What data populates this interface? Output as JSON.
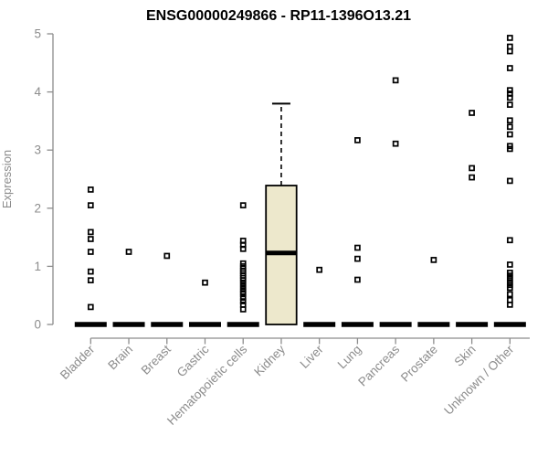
{
  "chart_data": {
    "type": "box",
    "title": "ENSG00000249866 - RP11-1396O13.21",
    "ylabel": "Expression",
    "xlabel": "",
    "ylim": [
      0,
      5
    ],
    "yticks": [
      0,
      1,
      2,
      3,
      4,
      5
    ],
    "grid": false,
    "legend": "none",
    "colors": {
      "box_fill": "#EDE8CC",
      "box_border": "#000000",
      "point_color": "#000000",
      "axis_color": "#8C8C8C",
      "title_color": "#000000",
      "background": "#FFFFFF"
    },
    "categories": [
      "Bladder",
      "Brain",
      "Breast",
      "Gastric",
      "Hematopoietic cells",
      "Kidney",
      "Liver",
      "Lung",
      "Pancreas",
      "Prostate",
      "Skin",
      "Unknown / Other"
    ],
    "series": [
      {
        "category": "Bladder",
        "box": {
          "whisker_low": 0,
          "q1": 0,
          "median": 0,
          "q3": 0,
          "whisker_high": 0
        },
        "points": [
          2.32,
          2.05,
          1.59,
          1.47,
          1.25,
          0.91,
          0.76,
          0.3
        ]
      },
      {
        "category": "Brain",
        "box": {
          "whisker_low": 0,
          "q1": 0,
          "median": 0,
          "q3": 0,
          "whisker_high": 0
        },
        "points": [
          1.25
        ]
      },
      {
        "category": "Breast",
        "box": {
          "whisker_low": 0,
          "q1": 0,
          "median": 0,
          "q3": 0,
          "whisker_high": 0
        },
        "points": [
          1.18
        ]
      },
      {
        "category": "Gastric",
        "box": {
          "whisker_low": 0,
          "q1": 0,
          "median": 0,
          "q3": 0,
          "whisker_high": 0
        },
        "points": [
          0.72
        ]
      },
      {
        "category": "Hematopoietic cells",
        "box": {
          "whisker_low": 0,
          "q1": 0,
          "median": 0,
          "q3": 0,
          "whisker_high": 0
        },
        "points": [
          2.05,
          1.44,
          1.37,
          1.3,
          1.05,
          1.0,
          0.96,
          0.92,
          0.88,
          0.84,
          0.8,
          0.76,
          0.71,
          0.66,
          0.61,
          0.56,
          0.52,
          0.46,
          0.4,
          0.34,
          0.26
        ]
      },
      {
        "category": "Kidney",
        "box": {
          "whisker_low": 0,
          "q1": 0,
          "median": 1.23,
          "q3": 2.39,
          "whisker_high": 3.8
        },
        "points": []
      },
      {
        "category": "Liver",
        "box": {
          "whisker_low": 0,
          "q1": 0,
          "median": 0,
          "q3": 0,
          "whisker_high": 0
        },
        "points": [
          0.94
        ]
      },
      {
        "category": "Lung",
        "box": {
          "whisker_low": 0,
          "q1": 0,
          "median": 0,
          "q3": 0,
          "whisker_high": 0
        },
        "points": [
          3.17,
          1.32,
          1.13,
          0.77
        ]
      },
      {
        "category": "Pancreas",
        "box": {
          "whisker_low": 0,
          "q1": 0,
          "median": 0,
          "q3": 0,
          "whisker_high": 0
        },
        "points": [
          4.2,
          3.11
        ]
      },
      {
        "category": "Prostate",
        "box": {
          "whisker_low": 0,
          "q1": 0,
          "median": 0,
          "q3": 0,
          "whisker_high": 0
        },
        "points": [
          1.11
        ]
      },
      {
        "category": "Skin",
        "box": {
          "whisker_low": 0,
          "q1": 0,
          "median": 0,
          "q3": 0,
          "whisker_high": 0
        },
        "points": [
          3.64,
          2.69,
          2.53
        ]
      },
      {
        "category": "Unknown / Other",
        "box": {
          "whisker_low": 0,
          "q1": 0,
          "median": 0,
          "q3": 0,
          "whisker_high": 0
        },
        "points": [
          4.93,
          4.78,
          4.7,
          4.41,
          4.03,
          3.97,
          3.9,
          3.78,
          3.51,
          3.4,
          3.27,
          3.07,
          3.02,
          2.47,
          1.45,
          1.03,
          0.89,
          0.84,
          0.79,
          0.73,
          0.68,
          0.63,
          0.52,
          0.42,
          0.34
        ]
      }
    ]
  }
}
